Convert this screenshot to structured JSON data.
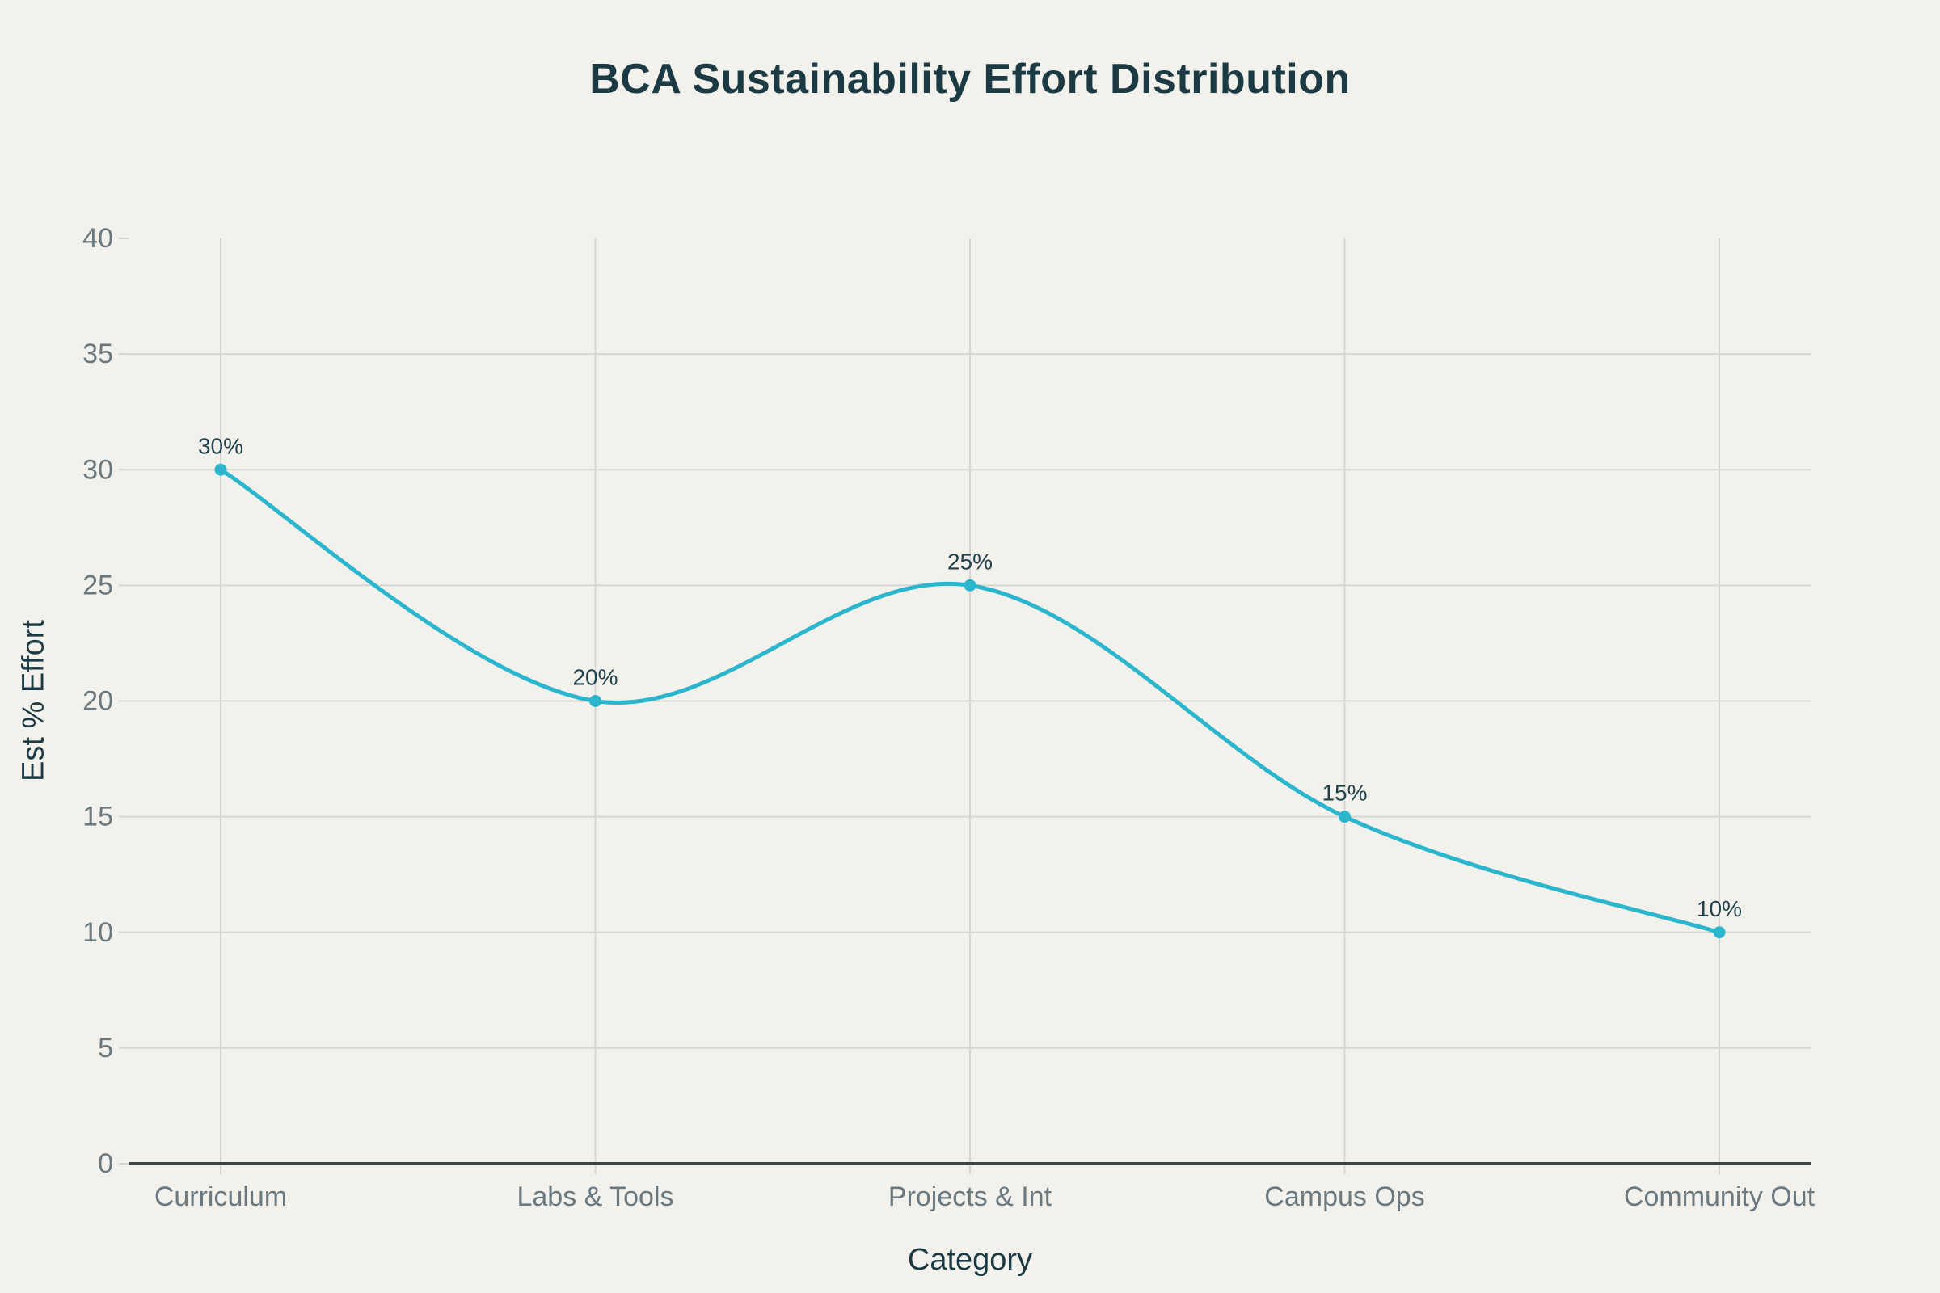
{
  "chart_data": {
    "type": "line",
    "line_shape": "spline",
    "title": "BCA Sustainability Effort Distribution",
    "xlabel": "Category",
    "ylabel": "Est % Effort",
    "categories": [
      "Curriculum",
      "Labs & Tools",
      "Projects & Int",
      "Campus Ops",
      "Community Out"
    ],
    "values": [
      30,
      20,
      25,
      15,
      10
    ],
    "point_labels": [
      "30%",
      "20%",
      "25%",
      "15%",
      "10%"
    ],
    "ylim": [
      0,
      40
    ],
    "ytick_step": 5,
    "ytick_labels": [
      "0",
      "5",
      "10",
      "15",
      "20",
      "25",
      "30",
      "35",
      "40"
    ],
    "grid": "on",
    "legend": "none",
    "colors": {
      "line": "#2BB6CE",
      "marker": "#2BB6CE",
      "background": "#F2F1EC",
      "gridline": "#D8D6D0",
      "axis_line": "#3E4447",
      "tick_label": "#6A7880",
      "axis_title": "#1B3A43",
      "chart_title": "#1B3A43",
      "data_label": "#20424C"
    }
  }
}
